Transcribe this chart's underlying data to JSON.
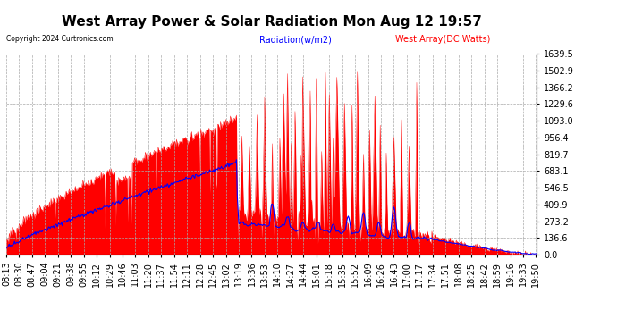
{
  "title": "West Array Power & Solar Radiation Mon Aug 12 19:57",
  "copyright": "Copyright 2024 Curtronics.com",
  "legend_radiation": "Radiation(w/m2)",
  "legend_west": "West Array(DC Watts)",
  "legend_radiation_color": "blue",
  "legend_west_color": "red",
  "ymin": 0.0,
  "ymax": 1639.5,
  "yticks": [
    0.0,
    136.6,
    273.2,
    409.9,
    546.5,
    683.1,
    819.7,
    956.4,
    1093.0,
    1229.6,
    1366.2,
    1502.9,
    1639.5
  ],
  "background_color": "#ffffff",
  "grid_color": "#aaaaaa",
  "fill_color": "red",
  "line_color": "blue",
  "title_fontsize": 11,
  "tick_fontsize": 7,
  "x_label_rotation": 90
}
